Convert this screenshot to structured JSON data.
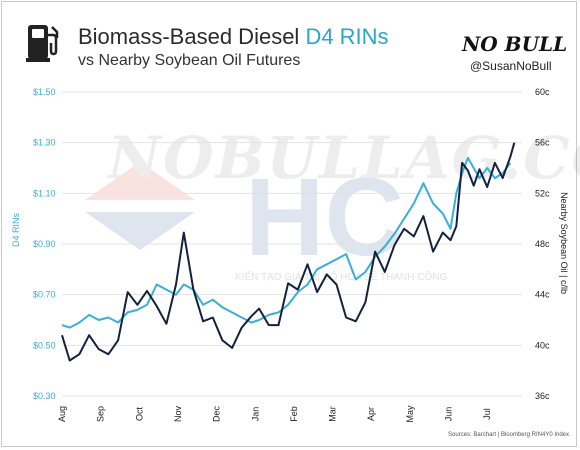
{
  "header": {
    "title_main": "Biomass-Based Diesel ",
    "title_accent": "D4 RINs",
    "subtitle": "vs Nearby Soybean Oil Futures",
    "logo_text": "NO BULL",
    "handle": "@SusanNoBull",
    "icon": "fuel-pump-icon"
  },
  "watermark": {
    "text": "NOBULLAG.COM",
    "logo_text": "HC",
    "tagline": "KIẾN TẠO GIÁ TRỊ SỐ HÓA SẼ THÀNH CÔNG"
  },
  "source": "Sources: Barchart | Bloomberg RIN4Y0 Index",
  "colors": {
    "rin": "#3aaed8",
    "soy": "#14213d",
    "axis_left": "#3aaed8",
    "axis_right": "#222222",
    "grid": "#e3e3e3"
  },
  "chart_data": {
    "type": "line",
    "ylabel": "D4 RINs",
    "ylabel_right": "Nearby Soybean Oil | c/lb",
    "ylim": [
      0.3,
      1.5
    ],
    "ylim_right": [
      36,
      60
    ],
    "y_ticks_left": [
      "$1.50",
      "$1.30",
      "$1.10",
      "$0.90",
      "$0.70",
      "$0.50",
      "$0.30"
    ],
    "y_ticks_right": [
      "60c",
      "56c",
      "52c",
      "48c",
      "44c",
      "40c",
      "36c"
    ],
    "x_ticks": [
      "Aug",
      "Sep",
      "Oct",
      "Nov",
      "Dec",
      "Jan",
      "Feb",
      "Mar",
      "Apr",
      "May",
      "Jun",
      "Jul"
    ],
    "x_range": [
      0,
      11.9
    ],
    "grid": true,
    "series": [
      {
        "key": "rin",
        "axis": "left",
        "x": [
          0,
          0.2,
          0.45,
          0.7,
          0.95,
          1.2,
          1.45,
          1.7,
          1.95,
          2.2,
          2.45,
          2.7,
          2.95,
          3.15,
          3.4,
          3.65,
          3.9,
          4.15,
          4.4,
          4.65,
          4.9,
          5.1,
          5.35,
          5.6,
          5.85,
          6.1,
          6.35,
          6.6,
          6.85,
          7.1,
          7.35,
          7.6,
          7.85,
          8.1,
          8.35,
          8.6,
          8.85,
          9.1,
          9.35,
          9.6,
          9.85,
          10.05,
          10.2,
          10.35,
          10.5,
          10.65,
          10.8,
          11.0,
          11.2,
          11.4,
          11.6
        ],
        "values": [
          0.58,
          0.57,
          0.59,
          0.62,
          0.6,
          0.61,
          0.59,
          0.63,
          0.64,
          0.66,
          0.74,
          0.72,
          0.7,
          0.74,
          0.72,
          0.66,
          0.68,
          0.65,
          0.63,
          0.61,
          0.59,
          0.6,
          0.62,
          0.63,
          0.66,
          0.71,
          0.74,
          0.8,
          0.82,
          0.84,
          0.86,
          0.76,
          0.79,
          0.85,
          0.89,
          0.94,
          1.0,
          1.06,
          1.14,
          1.06,
          1.02,
          0.96,
          1.1,
          1.18,
          1.24,
          1.2,
          1.16,
          1.2,
          1.16,
          1.18,
          1.22
        ]
      },
      {
        "key": "soy",
        "axis": "right",
        "x": [
          0,
          0.2,
          0.45,
          0.7,
          0.95,
          1.2,
          1.45,
          1.7,
          1.95,
          2.2,
          2.45,
          2.7,
          2.95,
          3.15,
          3.4,
          3.65,
          3.9,
          4.15,
          4.4,
          4.65,
          4.9,
          5.1,
          5.35,
          5.6,
          5.85,
          6.1,
          6.35,
          6.6,
          6.85,
          7.1,
          7.35,
          7.6,
          7.85,
          8.1,
          8.35,
          8.6,
          8.85,
          9.1,
          9.35,
          9.6,
          9.85,
          10.05,
          10.2,
          10.35,
          10.5,
          10.65,
          10.8,
          11.0,
          11.2,
          11.4,
          11.6,
          11.7
        ],
        "values": [
          40.8,
          38.8,
          39.3,
          40.8,
          39.7,
          39.3,
          40.4,
          44.2,
          43.2,
          44.3,
          43.1,
          41.7,
          44.8,
          48.9,
          44.4,
          41.9,
          42.2,
          40.4,
          39.8,
          41.4,
          42.3,
          42.9,
          41.6,
          41.6,
          44.9,
          44.4,
          46.4,
          44.2,
          45.6,
          44.8,
          42.2,
          41.9,
          43.4,
          47.4,
          45.8,
          47.9,
          49.2,
          48.6,
          50.2,
          47.4,
          48.9,
          48.3,
          49.4,
          54.4,
          53.8,
          52.6,
          53.9,
          52.5,
          54.4,
          53.2,
          54.9,
          56.0
        ]
      }
    ]
  }
}
